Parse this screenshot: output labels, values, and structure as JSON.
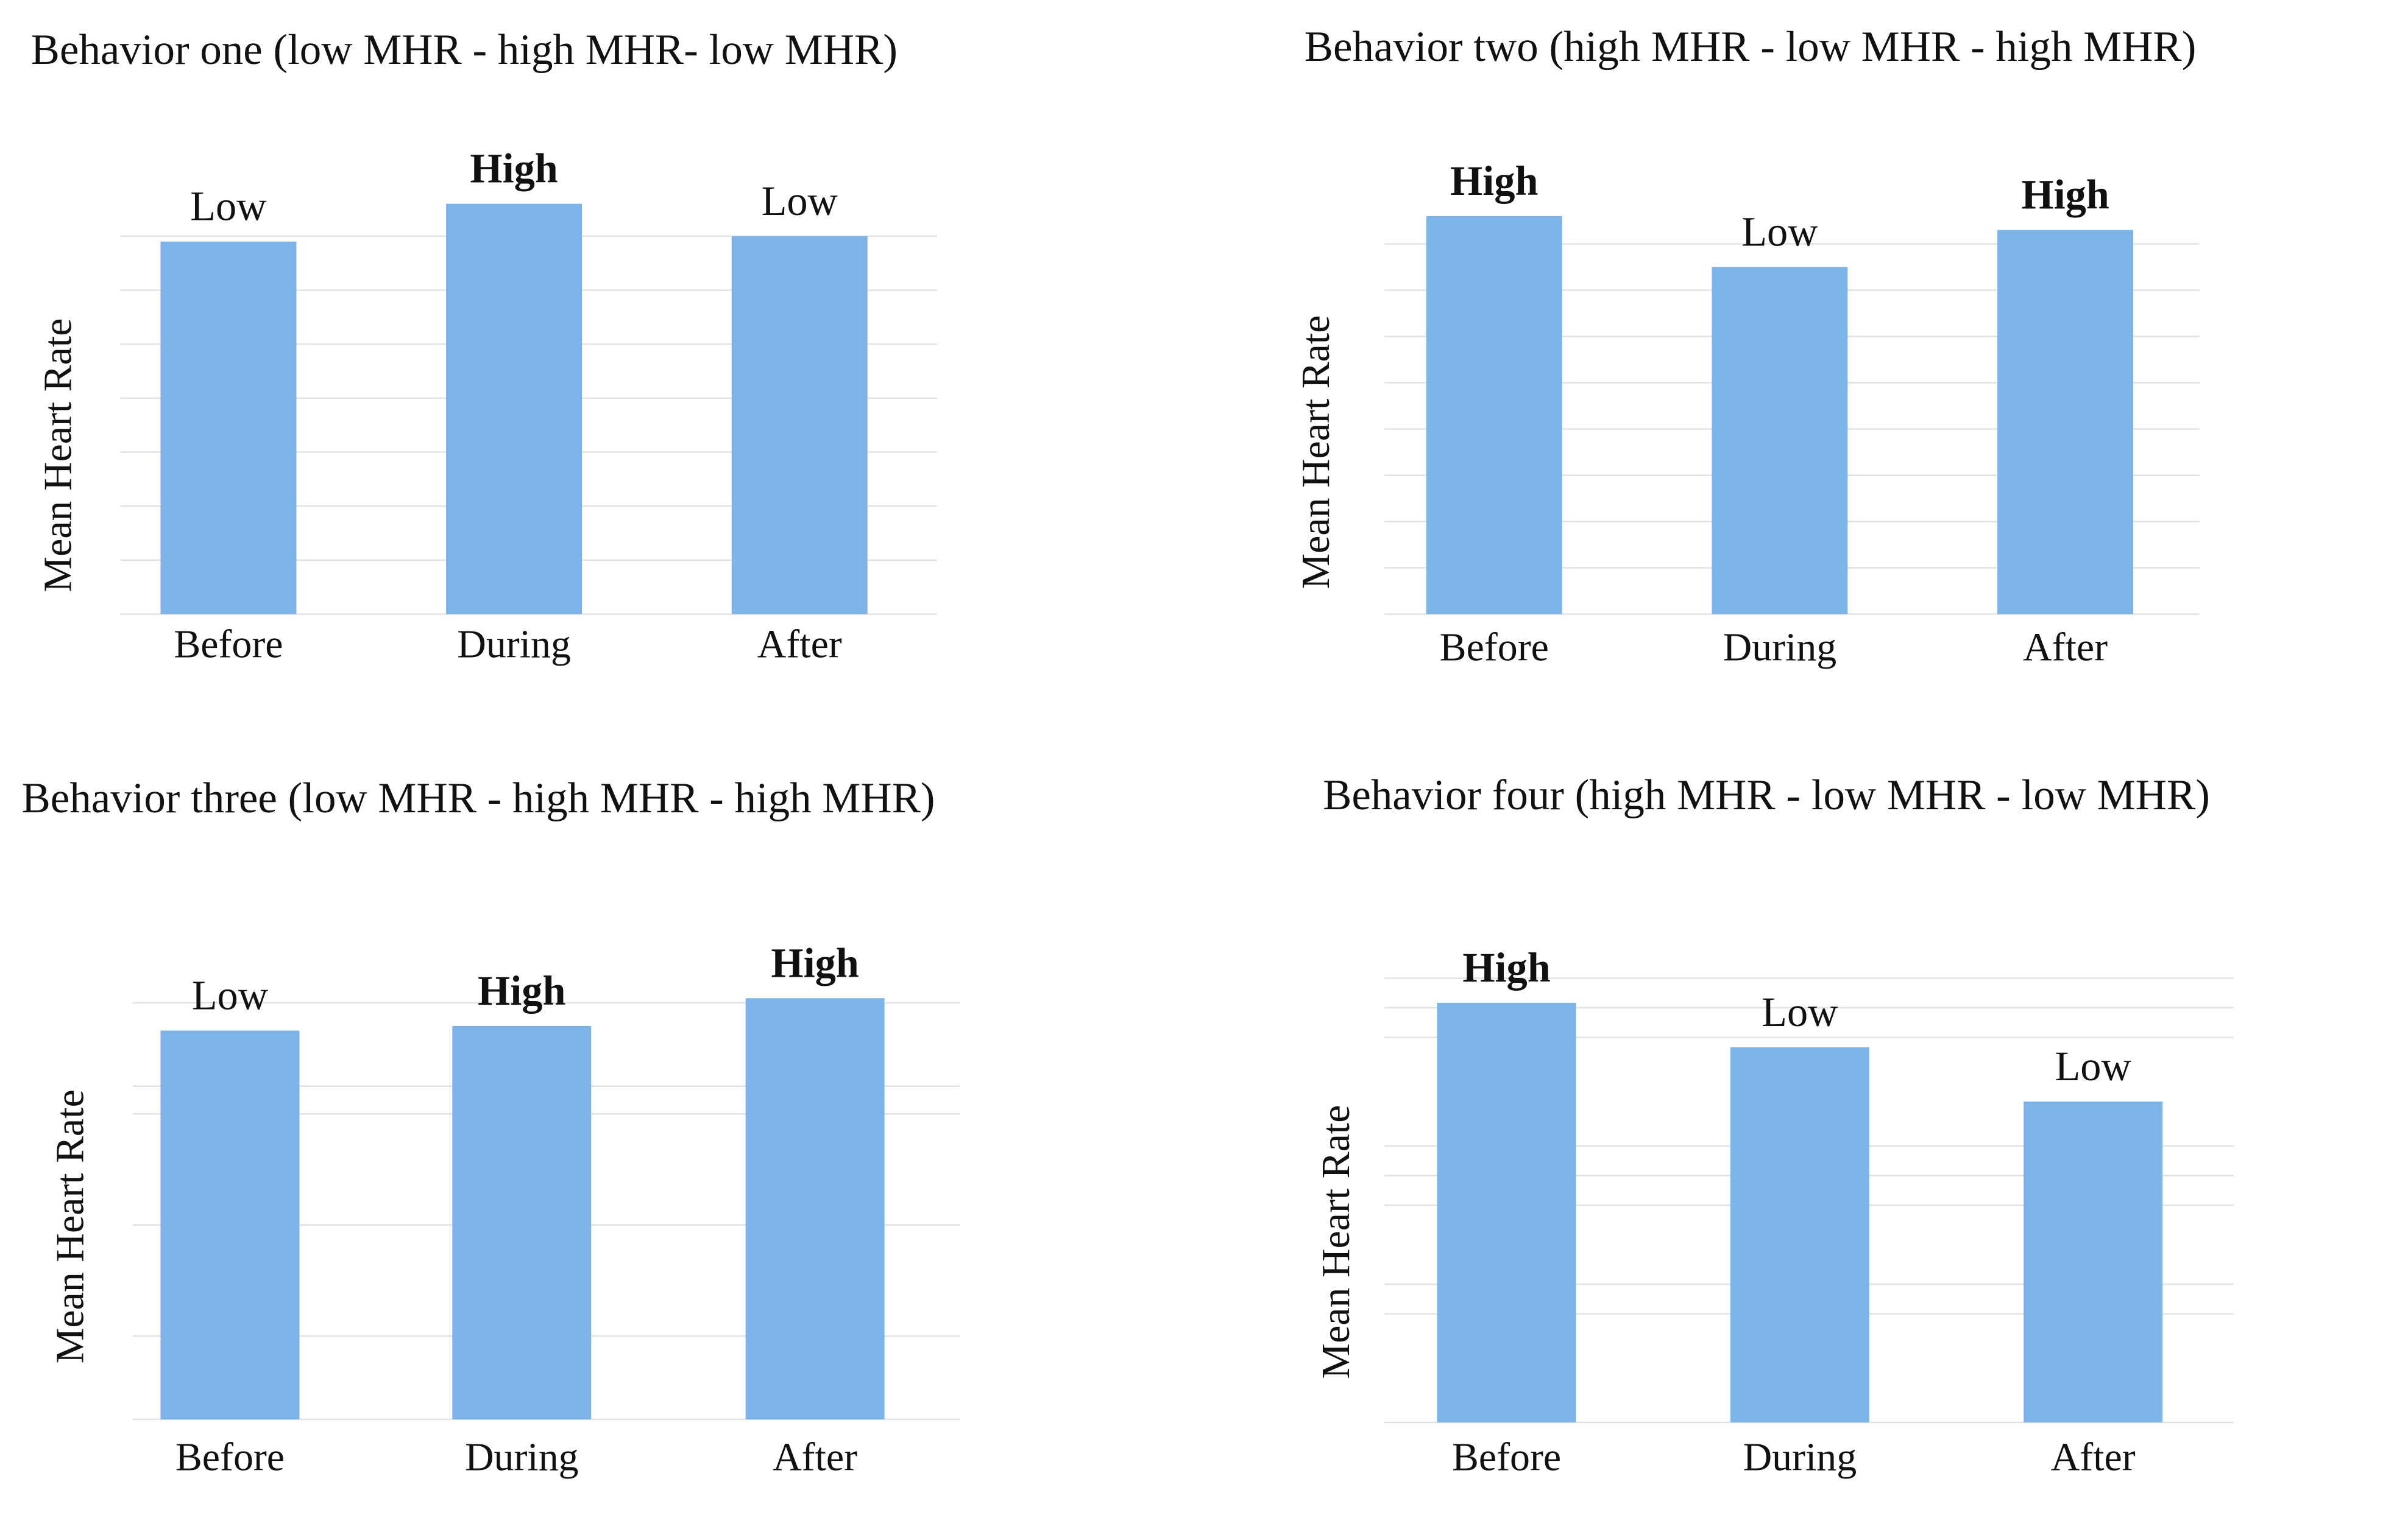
{
  "chart_data": [
    {
      "type": "bar",
      "title": "Behavior one (low MHR - high MHR- low MHR)",
      "y_label": "Mean Heart Rate",
      "categories": [
        "Before",
        "During",
        "After"
      ],
      "values": [
        6.9,
        7.6,
        7.0
      ],
      "bar_labels": [
        "Low",
        "High",
        "Low"
      ],
      "bar_label_bold": [
        false,
        true,
        false
      ],
      "color": "#7cb4ea",
      "ylim": [
        0,
        8
      ],
      "yticks": [
        0,
        1,
        2,
        3,
        4,
        5,
        6,
        7
      ],
      "grid": true
    },
    {
      "type": "bar",
      "title": "Behavior two (high MHR - low MHR - high MHR)",
      "y_label": "Mean Heart Rate",
      "categories": [
        "Before",
        "During",
        "After"
      ],
      "values": [
        8.6,
        7.5,
        8.3
      ],
      "bar_labels": [
        "High",
        "Low",
        "High"
      ],
      "bar_label_bold": [
        true,
        false,
        true
      ],
      "color": "#7cb4ea",
      "ylim": [
        0,
        9
      ],
      "yticks": [
        0,
        1,
        2,
        3,
        4,
        5,
        6,
        7,
        8
      ],
      "grid": true
    },
    {
      "type": "bar",
      "title": "Behavior three (low MHR - high MHR - high MHR)",
      "y_label": "Mean Heart Rate",
      "categories": [
        "Before",
        "During",
        "After"
      ],
      "values": [
        8.4,
        8.5,
        9.1
      ],
      "bar_labels": [
        "Low",
        "High",
        "High"
      ],
      "bar_label_bold": [
        false,
        true,
        true
      ],
      "color": "#7cb4ea",
      "ylim": [
        0,
        10
      ],
      "yticks": [
        0,
        1.8,
        4.2,
        6.6,
        7.2,
        9
      ],
      "grid": true
    },
    {
      "type": "bar",
      "title": "Behavior four (high MHR - low MHR - low MHR)",
      "y_label": "Mean Heart Rate",
      "categories": [
        "Before",
        "During",
        "After"
      ],
      "values": [
        8.5,
        7.6,
        6.5
      ],
      "bar_labels": [
        "High",
        "Low",
        "Low"
      ],
      "bar_label_bold": [
        true,
        false,
        false
      ],
      "color": "#7cb4ea",
      "ylim": [
        0,
        10
      ],
      "yticks": [
        0,
        2.2,
        2.8,
        4.4,
        5,
        5.6,
        7.8,
        8.4,
        9
      ],
      "grid": true
    }
  ]
}
